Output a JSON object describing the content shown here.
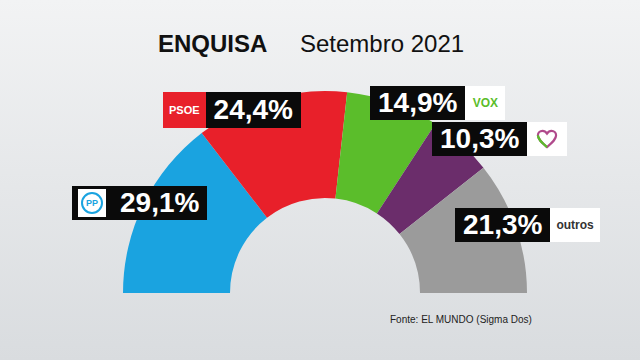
{
  "chart_data": {
    "type": "pie",
    "title": "ENQUISA",
    "subtitle": "Setembro 2021",
    "source": "Fonte: EL MUNDO (Sigma Dos)",
    "categories": [
      "PP",
      "PSOE",
      "VOX",
      null,
      "outros"
    ],
    "values": [
      29.1,
      24.4,
      14.9,
      10.3,
      21.3
    ],
    "value_labels": [
      "29,1%",
      "24,4%",
      "14,9%",
      "10,3%",
      "21,3%"
    ],
    "colors": [
      "#1aa3e0",
      "#e8202a",
      "#5bbd2b",
      "#6b2d6b",
      "#9b9b9b"
    ],
    "data_labels": true
  }
}
